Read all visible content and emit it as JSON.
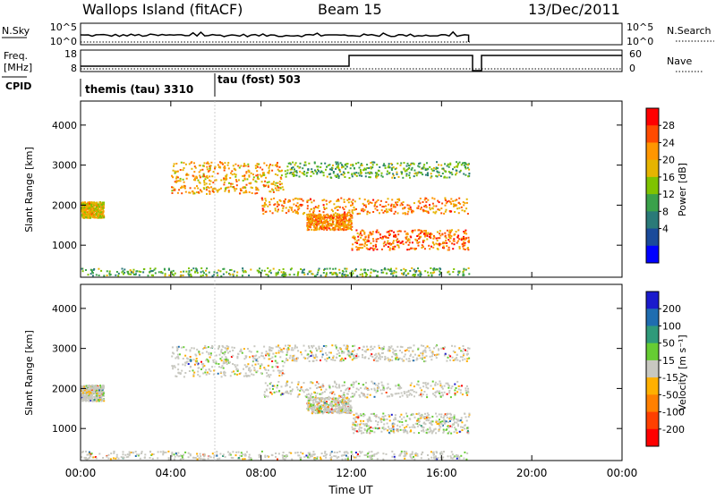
{
  "header": {
    "station": "Wallops Island (fitACF)",
    "beam": "Beam 15",
    "date": "13/Dec/2011"
  },
  "panels": {
    "nsky": {
      "label": "N.Sky",
      "tick_top": "10^5",
      "tick_bottom": "10^0",
      "right_tick_top": "10^5",
      "right_tick_bottom": "10^0",
      "right_label": "N.Search"
    },
    "freq": {
      "label_line1": "Freq.",
      "label_line2": "[MHz]",
      "tick_top": "18",
      "tick_bottom": "8",
      "right_tick_top": "60",
      "right_tick_bottom": "0",
      "right_label": "Nave"
    },
    "cpid": {
      "label": "CPID",
      "modes": [
        {
          "text": "themis (tau) 3310",
          "start_hour": 0.0
        },
        {
          "text": "tau (fost) 503",
          "start_hour": 6.0
        }
      ]
    }
  },
  "chart_data": [
    {
      "type": "heatmap",
      "name": "power",
      "ylabel": "Slant Range [km]",
      "xlabel": "Time UT",
      "xlim": [
        0,
        24
      ],
      "ylim": [
        200,
        4600
      ],
      "yticks": [
        "1000",
        "2000",
        "3000",
        "4000"
      ],
      "colorbar": {
        "label": "Power [dB]",
        "ticks": [
          "28",
          "24",
          "20",
          "16",
          "12",
          "8",
          "4"
        ],
        "colors": [
          "#ff0000",
          "#ff4b00",
          "#ff9600",
          "#e6b400",
          "#7fc300",
          "#3aa14a",
          "#2a7a78",
          "#1a4a9a",
          "#0000ff"
        ]
      },
      "bands": [
        {
          "t0": 0.0,
          "t1": 17.2,
          "r0": 250,
          "r1": 450,
          "level": 0.6
        },
        {
          "t0": 0.0,
          "t1": 1.0,
          "r0": 1700,
          "r1": 2100,
          "level": 0.8
        },
        {
          "t0": 4.0,
          "t1": 9.0,
          "r0": 2300,
          "r1": 3100,
          "level": 0.85
        },
        {
          "t0": 9.0,
          "t1": 17.2,
          "r0": 2700,
          "r1": 3100,
          "level": 0.6
        },
        {
          "t0": 8.0,
          "t1": 17.2,
          "r0": 1800,
          "r1": 2200,
          "level": 0.9
        },
        {
          "t0": 12.0,
          "t1": 17.2,
          "r0": 900,
          "r1": 1400,
          "level": 0.95
        },
        {
          "t0": 10.0,
          "t1": 12.0,
          "r0": 1400,
          "r1": 1800,
          "level": 0.9
        }
      ]
    },
    {
      "type": "heatmap",
      "name": "velocity",
      "ylabel": "Slant Range [km]",
      "xlabel": "Time UT",
      "xlim": [
        0,
        24
      ],
      "ylim": [
        200,
        4600
      ],
      "yticks": [
        "1000",
        "2000",
        "3000",
        "4000"
      ],
      "xticks": [
        "00:00",
        "04:00",
        "08:00",
        "12:00",
        "16:00",
        "20:00",
        "00:00"
      ],
      "colorbar": {
        "label": "Velocity [m s⁻¹]",
        "ticks": [
          "200",
          "100",
          "50",
          "15",
          "-15",
          "-50",
          "-100",
          "-200"
        ],
        "colors": [
          "#1a1acc",
          "#1f6db0",
          "#2f9a7a",
          "#66cc33",
          "#c8c8c0",
          "#ffb000",
          "#ff8000",
          "#ff4000",
          "#ff0000"
        ]
      }
    }
  ]
}
